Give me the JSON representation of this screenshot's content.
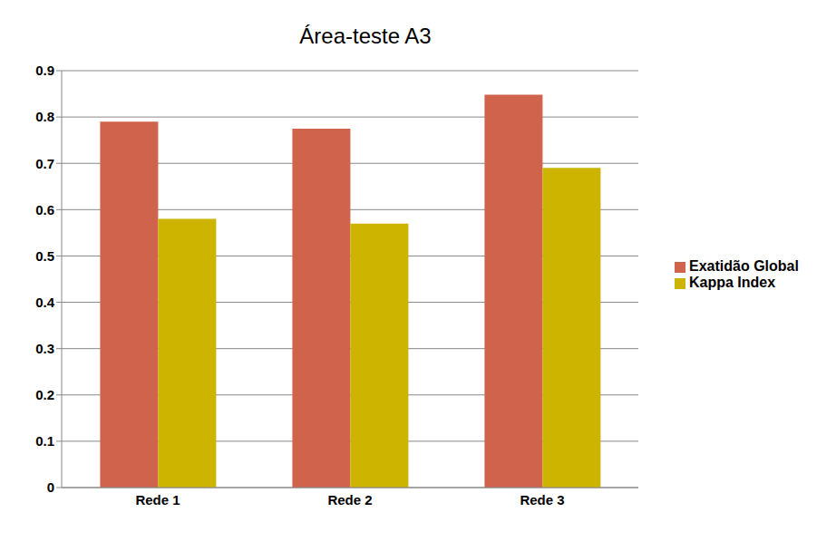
{
  "chart_data": {
    "type": "bar",
    "title": "Área-teste A3",
    "categories": [
      "Rede 1",
      "Rede 2",
      "Rede 3"
    ],
    "series": [
      {
        "name": "Exatidão Global",
        "color": "#d0634b",
        "values": [
          0.79,
          0.775,
          0.848
        ]
      },
      {
        "name": "Kappa Index",
        "color": "#ccb400",
        "values": [
          0.58,
          0.57,
          0.69
        ]
      }
    ],
    "ylim": [
      0,
      0.9
    ],
    "yticks": [
      0,
      0.1,
      0.2,
      0.3,
      0.4,
      0.5,
      0.6,
      0.7,
      0.8,
      0.9
    ],
    "grid": true,
    "legend": "right"
  }
}
